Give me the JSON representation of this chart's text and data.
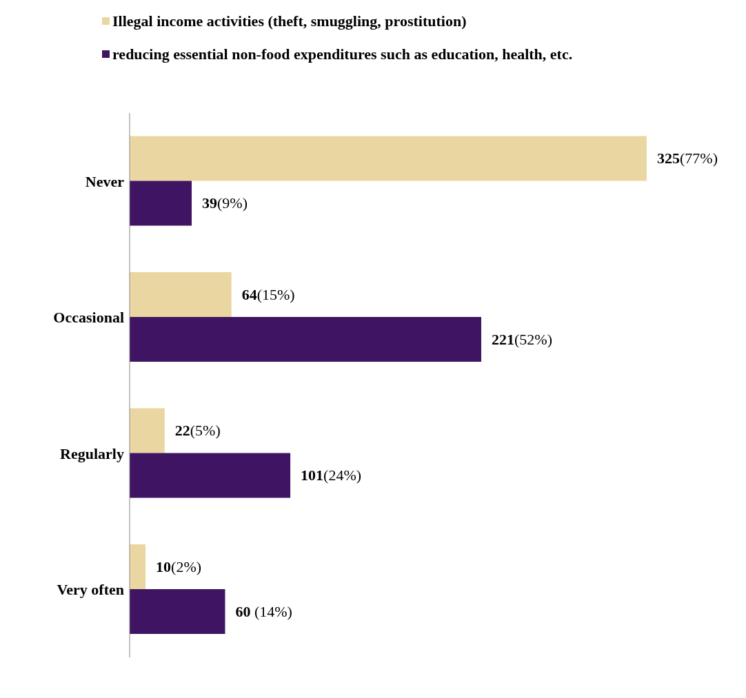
{
  "chart_data": {
    "type": "bar",
    "orientation": "horizontal",
    "legend": "top",
    "categories": [
      "Never",
      "Occasional",
      "Regularly",
      "Very often"
    ],
    "series": [
      {
        "name": "Illegal income activities (theft, smuggling, prostitution)",
        "color": "#ead6a0",
        "values": [
          325,
          64,
          22,
          10
        ],
        "value_labels": [
          "325(77%)",
          "64(15%)",
          "22(5%)",
          "10(2%)"
        ]
      },
      {
        "name": "reducing essential non-food expenditures such as education, health, etc.",
        "color": "#3e1463",
        "values": [
          39,
          221,
          101,
          60
        ],
        "value_labels": [
          "39(9%)",
          "221(52%)",
          "101(24%)",
          "60 (14%)"
        ]
      }
    ]
  }
}
